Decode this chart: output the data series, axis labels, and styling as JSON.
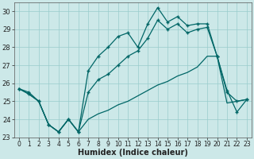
{
  "xlabel": "Humidex (Indice chaleur)",
  "xlim": [
    -0.5,
    23.5
  ],
  "ylim": [
    23,
    30.5
  ],
  "yticks": [
    23,
    24,
    25,
    26,
    27,
    28,
    29,
    30
  ],
  "xticks": [
    0,
    1,
    2,
    3,
    4,
    5,
    6,
    7,
    8,
    9,
    10,
    11,
    12,
    13,
    14,
    15,
    16,
    17,
    18,
    19,
    20,
    21,
    22,
    23
  ],
  "bg_color": "#cce8e8",
  "grid_color": "#99cccc",
  "line_color": "#006666",
  "line1_x": [
    0,
    1,
    2,
    3,
    4,
    5,
    6,
    7,
    8,
    9,
    10,
    11,
    12,
    13,
    14,
    15,
    16,
    17,
    18,
    19,
    20,
    21,
    22,
    23
  ],
  "line1_y": [
    25.7,
    25.5,
    25.0,
    23.7,
    23.3,
    24.0,
    23.3,
    26.7,
    27.5,
    28.0,
    28.6,
    28.8,
    28.0,
    29.3,
    30.2,
    29.4,
    29.7,
    29.2,
    29.3,
    29.3,
    27.5,
    25.6,
    24.4,
    25.1
  ],
  "line2_x": [
    0,
    1,
    2,
    3,
    4,
    5,
    6,
    7,
    8,
    9,
    10,
    11,
    12,
    13,
    14,
    15,
    16,
    17,
    18,
    19,
    20,
    21,
    22,
    23
  ],
  "line2_y": [
    25.7,
    25.4,
    25.0,
    23.7,
    23.3,
    24.0,
    23.3,
    25.5,
    26.2,
    26.5,
    27.0,
    27.5,
    27.8,
    28.5,
    29.5,
    29.0,
    29.3,
    28.8,
    29.0,
    29.1,
    27.5,
    25.5,
    25.0,
    25.1
  ],
  "line3_x": [
    0,
    1,
    2,
    3,
    4,
    5,
    6,
    7,
    8,
    9,
    10,
    11,
    12,
    13,
    14,
    15,
    16,
    17,
    18,
    19,
    20,
    21,
    22,
    23
  ],
  "line3_y": [
    25.7,
    25.4,
    25.0,
    23.7,
    23.3,
    24.0,
    23.3,
    24.0,
    24.3,
    24.5,
    24.8,
    25.0,
    25.3,
    25.6,
    25.9,
    26.1,
    26.4,
    26.6,
    26.9,
    27.5,
    27.5,
    24.9,
    25.0,
    25.1
  ]
}
